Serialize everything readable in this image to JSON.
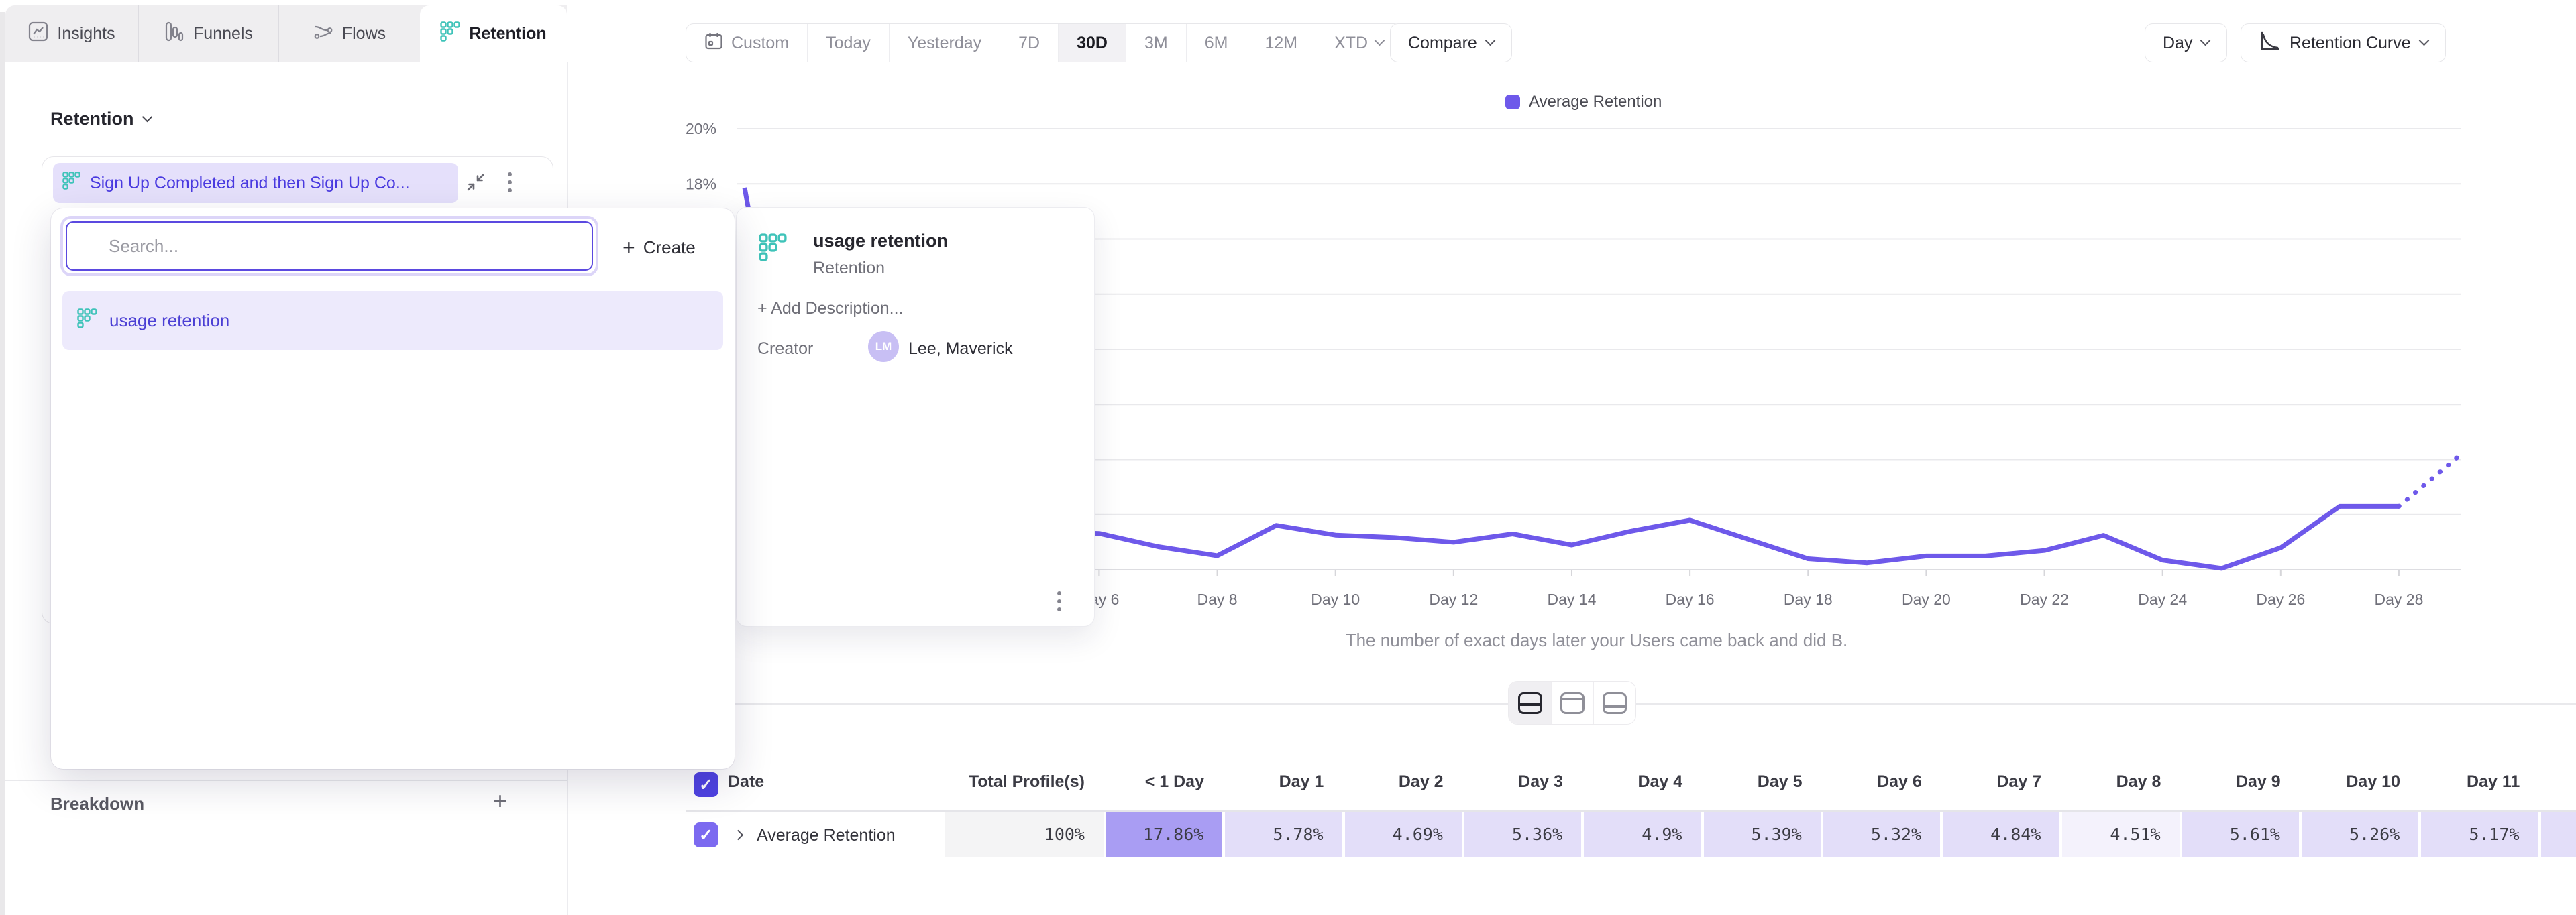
{
  "tabs": {
    "insights": "Insights",
    "funnels": "Funnels",
    "flows": "Flows",
    "retention": "Retention"
  },
  "sidebar": {
    "section_title": "Retention",
    "query_pill": "Sign Up Completed and then Sign Up Co...",
    "breakdown_title": "Breakdown",
    "breakdown_add": "+"
  },
  "search_popup": {
    "placeholder": "Search...",
    "create_plus": "+",
    "create_label": "Create",
    "result_label": "usage retention"
  },
  "hover_card": {
    "title": "usage retention",
    "subtitle": "Retention",
    "add_description": "+ Add Description...",
    "creator_label": "Creator",
    "creator_initials": "LM",
    "creator_name": "Lee, Maverick"
  },
  "toolbar": {
    "ranges": [
      "Custom",
      "Today",
      "Yesterday",
      "7D",
      "30D",
      "3M",
      "6M",
      "12M",
      "XTD"
    ],
    "active_range": "30D",
    "compare_label": "Compare",
    "granularity_label": "Day",
    "chart_type_label": "Retention Curve"
  },
  "chart_data": {
    "type": "line",
    "legend": [
      "Average Retention"
    ],
    "legend_position": "top",
    "caption": "The number of exact days later your Users came back and did B.",
    "ylim": [
      4,
      20
    ],
    "gridline_values": [
      20,
      18,
      16,
      14,
      12,
      10,
      8,
      6
    ],
    "y_ticks": [
      {
        "label": "20%",
        "value": 20
      },
      {
        "label": "18%",
        "value": 18
      }
    ],
    "x_ticks": [
      {
        "day": 6,
        "label": "Day 6"
      },
      {
        "day": 8,
        "label": "Day 8"
      },
      {
        "day": 10,
        "label": "Day 10"
      },
      {
        "day": 12,
        "label": "Day 12"
      },
      {
        "day": 14,
        "label": "Day 14"
      },
      {
        "day": 16,
        "label": "Day 16"
      },
      {
        "day": 18,
        "label": "Day 18"
      },
      {
        "day": 20,
        "label": "Day 20"
      },
      {
        "day": 22,
        "label": "Day 22"
      },
      {
        "day": 24,
        "label": "Day 24"
      },
      {
        "day": 26,
        "label": "Day 26"
      },
      {
        "day": 28,
        "label": "Day 28"
      }
    ],
    "series": [
      {
        "name": "Average Retention",
        "color": "#6e59ea",
        "x_days": [
          0,
          1,
          2,
          3,
          4,
          5,
          6,
          7,
          8,
          9,
          10,
          11,
          12,
          13,
          14,
          15,
          16,
          17,
          18,
          19,
          20,
          21,
          22,
          23,
          24,
          25,
          26,
          27,
          28,
          29
        ],
        "values": [
          17.86,
          5.78,
          4.69,
          5.36,
          4.9,
          5.39,
          5.32,
          4.84,
          4.51,
          5.61,
          5.26,
          5.17,
          5.0,
          5.3,
          4.9,
          5.4,
          5.8,
          5.1,
          4.4,
          4.25,
          4.5,
          4.5,
          4.7,
          5.25,
          4.35,
          4.05,
          4.8,
          6.3,
          6.3,
          8.1
        ],
        "dashed_from_day": 28
      }
    ]
  },
  "table": {
    "select_all_checked": true,
    "date_header": "Date",
    "total_header": "Total Profile(s)",
    "day_headers": [
      "< 1 Day",
      "Day 1",
      "Day 2",
      "Day 3",
      "Day 4",
      "Day 5",
      "Day 6",
      "Day 7",
      "Day 8",
      "Day 9",
      "Day 10",
      "Day 11"
    ],
    "rows": [
      {
        "checked": true,
        "label": "Average Retention",
        "total": "100%",
        "cells": [
          {
            "value": "17.86%",
            "bg": "#a99df3"
          },
          {
            "value": "5.78%",
            "bg": "#e3def9"
          },
          {
            "value": "4.69%",
            "bg": "#e3def9"
          },
          {
            "value": "5.36%",
            "bg": "#e3def9"
          },
          {
            "value": "4.9%",
            "bg": "#e3def9"
          },
          {
            "value": "5.39%",
            "bg": "#e3def9"
          },
          {
            "value": "5.32%",
            "bg": "#e3def9"
          },
          {
            "value": "4.84%",
            "bg": "#e3def9"
          },
          {
            "value": "4.51%",
            "bg": "#f4f2fc"
          },
          {
            "value": "5.61%",
            "bg": "#e3def9"
          },
          {
            "value": "5.26%",
            "bg": "#e3def9"
          },
          {
            "value": "5.17%",
            "bg": "#e3def9"
          },
          {
            "value": "",
            "bg": "#e3def9"
          }
        ]
      }
    ]
  },
  "colors": {
    "accent_purple": "#5b49e0",
    "line_purple": "#6e59ea",
    "teal_icon": "#3fc3b9",
    "cell_light": "#e3def9",
    "cell_strong": "#a99df3"
  }
}
